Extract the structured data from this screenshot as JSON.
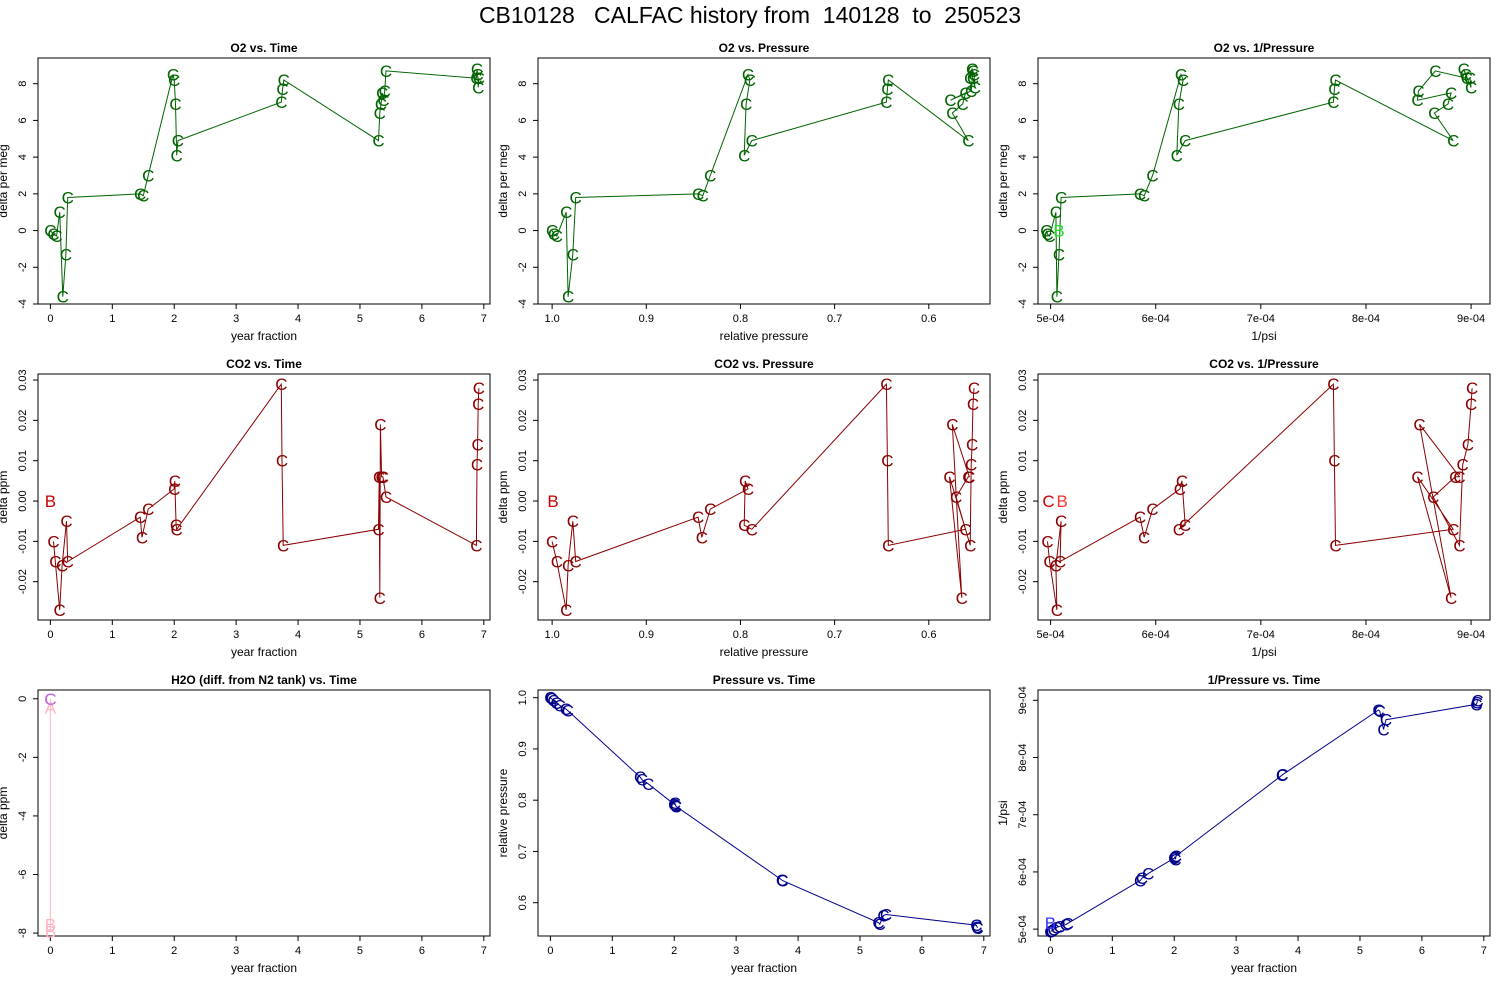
{
  "title": "CB10128   CALFAC history from  140128  to  250523",
  "colors": {
    "o2": "#006400",
    "co2": "#8b0000",
    "h2o": "#ffb6c1",
    "pressure": "#00008b"
  },
  "chart_data": [
    {
      "type": "line",
      "title": "O2 vs. Time",
      "xlabel": "year fraction",
      "ylabel": "delta per meg",
      "xlim": [
        -0.2,
        7.1
      ],
      "ylim": [
        -4,
        9.4
      ],
      "xticks": [
        [
          0,
          "0"
        ],
        [
          1,
          "1"
        ],
        [
          2,
          "2"
        ],
        [
          3,
          "3"
        ],
        [
          4,
          "4"
        ],
        [
          5,
          "5"
        ],
        [
          6,
          "6"
        ],
        [
          7,
          "7"
        ]
      ],
      "yticks": [
        [
          -4,
          "-4"
        ],
        [
          -2,
          "-2"
        ],
        [
          0,
          "0"
        ],
        [
          2,
          "2"
        ],
        [
          4,
          "4"
        ],
        [
          6,
          "6"
        ],
        [
          8,
          "8"
        ]
      ],
      "color": "#006400",
      "symbol": "C",
      "x": [
        0,
        0.05,
        0.1,
        0.15,
        0.2,
        0.25,
        0.28,
        1.45,
        1.5,
        1.58,
        1.98,
        2.0,
        2.02,
        2.04,
        2.06,
        3.73,
        3.75,
        3.77,
        5.3,
        5.32,
        5.34,
        5.36,
        5.38,
        5.4,
        5.42,
        6.88,
        6.89,
        6.9,
        6.91,
        6.92
      ],
      "y": [
        0,
        -0.2,
        -0.3,
        1.0,
        -3.6,
        -1.3,
        1.8,
        2.0,
        1.9,
        3.0,
        8.5,
        8.2,
        6.9,
        4.1,
        4.9,
        7.0,
        7.7,
        8.2,
        4.9,
        6.4,
        6.9,
        7.5,
        7.1,
        7.6,
        8.7,
        8.3,
        8.8,
        8.5,
        7.8,
        8.3
      ]
    },
    {
      "type": "line",
      "title": "O2 vs. Pressure",
      "xlabel": "relative pressure",
      "ylabel": "delta per meg",
      "xlim": [
        1.015,
        0.535
      ],
      "ylim": [
        -4,
        9.4
      ],
      "xticks": [
        [
          1.0,
          "1.0"
        ],
        [
          0.9,
          "0.9"
        ],
        [
          0.8,
          "0.8"
        ],
        [
          0.7,
          "0.7"
        ],
        [
          0.6,
          "0.6"
        ]
      ],
      "yticks": [
        [
          -4,
          "-4"
        ],
        [
          -2,
          "-2"
        ],
        [
          0,
          "0"
        ],
        [
          2,
          "2"
        ],
        [
          4,
          "4"
        ],
        [
          6,
          "6"
        ],
        [
          8,
          "8"
        ]
      ],
      "color": "#006400",
      "symbol": "C",
      "x": [
        1.0,
        0.998,
        0.995,
        0.985,
        0.983,
        0.978,
        0.975,
        0.845,
        0.84,
        0.832,
        0.792,
        0.79,
        0.794,
        0.796,
        0.788,
        0.645,
        0.644,
        0.643,
        0.558,
        0.575,
        0.564,
        0.561,
        0.577,
        0.555,
        0.553,
        0.556,
        0.554,
        0.552,
        0.551,
        0.553
      ],
      "y": [
        0,
        -0.2,
        -0.3,
        1.0,
        -3.6,
        -1.3,
        1.8,
        2.0,
        1.9,
        3.0,
        8.5,
        8.2,
        6.9,
        4.1,
        4.9,
        7.0,
        7.7,
        8.2,
        4.9,
        6.4,
        6.9,
        7.5,
        7.1,
        7.6,
        8.7,
        8.3,
        8.8,
        8.5,
        7.8,
        8.3
      ]
    },
    {
      "type": "line",
      "title": "O2 vs. 1/Pressure",
      "xlabel": "1/psi",
      "ylabel": "delta per meg",
      "xlim": [
        0.000488,
        0.000918
      ],
      "ylim": [
        -4,
        9.4
      ],
      "xticks": [
        [
          0.0005,
          "5e-04"
        ],
        [
          0.0006,
          "6e-04"
        ],
        [
          0.0007,
          "7e-04"
        ],
        [
          0.0008,
          "8e-04"
        ],
        [
          0.0009,
          "9e-04"
        ]
      ],
      "yticks": [
        [
          -4,
          "-4"
        ],
        [
          -2,
          "-2"
        ],
        [
          0,
          "0"
        ],
        [
          2,
          "2"
        ],
        [
          4,
          "4"
        ],
        [
          6,
          "6"
        ],
        [
          8,
          "8"
        ]
      ],
      "color": "#006400",
      "symbol": "C",
      "x": [
        0.000496,
        0.000497,
        0.000499,
        0.000505,
        0.000506,
        0.000508,
        0.00051,
        0.000585,
        0.000589,
        0.000597,
        0.000624,
        0.000626,
        0.000622,
        0.00062,
        0.000628,
        0.000769,
        0.00077,
        0.000771,
        0.000883,
        0.000865,
        0.000878,
        0.000881,
        0.000849,
        0.00085,
        0.000866,
        0.000896,
        0.000893,
        0.000895,
        0.0009,
        0.000899
      ],
      "y": [
        0,
        -0.2,
        -0.3,
        1.0,
        -3.6,
        -1.3,
        1.8,
        2.0,
        1.9,
        3.0,
        8.5,
        8.2,
        6.9,
        4.1,
        4.9,
        7.0,
        7.7,
        8.2,
        4.9,
        6.4,
        6.9,
        7.5,
        7.1,
        7.6,
        8.7,
        8.3,
        8.8,
        8.5,
        7.8,
        8.3
      ],
      "extra_points": [
        {
          "symbol": "B",
          "x": 0.000508,
          "y": 0,
          "color": "#22dd22"
        }
      ]
    },
    {
      "type": "line",
      "title": "CO2 vs. Time",
      "xlabel": "year fraction",
      "ylabel": "delta ppm",
      "xlim": [
        -0.2,
        7.1
      ],
      "ylim": [
        -0.0295,
        0.0315
      ],
      "xticks": [
        [
          0,
          "0"
        ],
        [
          1,
          "1"
        ],
        [
          2,
          "2"
        ],
        [
          3,
          "3"
        ],
        [
          4,
          "4"
        ],
        [
          5,
          "5"
        ],
        [
          6,
          "6"
        ],
        [
          7,
          "7"
        ]
      ],
      "yticks": [
        [
          -0.02,
          "-0.02"
        ],
        [
          -0.01,
          "-0.01"
        ],
        [
          0,
          "0.00"
        ],
        [
          0.01,
          "0.01"
        ],
        [
          0.02,
          "0.02"
        ],
        [
          0.03,
          "0.03"
        ]
      ],
      "color": "#8b0000",
      "symbol": "C",
      "x": [
        0.05,
        0.08,
        0.15,
        0.19,
        0.26,
        0.28,
        1.45,
        1.48,
        1.58,
        2.0,
        2.01,
        2.03,
        2.04,
        3.73,
        3.74,
        3.76,
        5.3,
        5.31,
        5.32,
        5.33,
        5.35,
        5.37,
        5.42,
        6.88,
        6.89,
        6.9,
        6.91,
        6.92
      ],
      "y": [
        -0.01,
        -0.015,
        -0.027,
        -0.016,
        -0.005,
        -0.015,
        -0.004,
        -0.009,
        -0.002,
        0.003,
        0.005,
        -0.006,
        -0.007,
        0.029,
        0.01,
        -0.011,
        -0.007,
        0.006,
        -0.024,
        0.019,
        0.006,
        0.006,
        0.001,
        -0.011,
        0.009,
        0.014,
        0.024,
        0.028
      ],
      "extra_points": [
        {
          "symbol": "B",
          "x": 0.0,
          "y": 0.0,
          "color": "#cc0000"
        }
      ]
    },
    {
      "type": "line",
      "title": "CO2 vs. Pressure",
      "xlabel": "relative pressure",
      "ylabel": "delta ppm",
      "xlim": [
        1.015,
        0.535
      ],
      "ylim": [
        -0.0295,
        0.0315
      ],
      "xticks": [
        [
          1.0,
          "1.0"
        ],
        [
          0.9,
          "0.9"
        ],
        [
          0.8,
          "0.8"
        ],
        [
          0.7,
          "0.7"
        ],
        [
          0.6,
          "0.6"
        ]
      ],
      "yticks": [
        [
          -0.02,
          "-0.02"
        ],
        [
          -0.01,
          "-0.01"
        ],
        [
          0,
          "0.00"
        ],
        [
          0.01,
          "0.01"
        ],
        [
          0.02,
          "0.02"
        ],
        [
          0.03,
          "0.03"
        ]
      ],
      "color": "#8b0000",
      "symbol": "C",
      "x": [
        1.0,
        0.995,
        0.985,
        0.983,
        0.978,
        0.975,
        0.845,
        0.841,
        0.832,
        0.792,
        0.795,
        0.796,
        0.788,
        0.645,
        0.644,
        0.643,
        0.561,
        0.578,
        0.565,
        0.575,
        0.557,
        0.558,
        0.571,
        0.556,
        0.555,
        0.554,
        0.553,
        0.552
      ],
      "y": [
        -0.01,
        -0.015,
        -0.027,
        -0.016,
        -0.005,
        -0.015,
        -0.004,
        -0.009,
        -0.002,
        0.003,
        0.005,
        -0.006,
        -0.007,
        0.029,
        0.01,
        -0.011,
        -0.007,
        0.006,
        -0.024,
        0.019,
        0.006,
        0.006,
        0.001,
        -0.011,
        0.009,
        0.014,
        0.024,
        0.028
      ],
      "extra_points": [
        {
          "symbol": "B",
          "x": 0.999,
          "y": 0.0,
          "color": "#cc0000"
        }
      ]
    },
    {
      "type": "line",
      "title": "CO2 vs. 1/Pressure",
      "xlabel": "1/psi",
      "ylabel": "delta ppm",
      "xlim": [
        0.000488,
        0.000918
      ],
      "ylim": [
        -0.0295,
        0.0315
      ],
      "xticks": [
        [
          0.0005,
          "5e-04"
        ],
        [
          0.0006,
          "6e-04"
        ],
        [
          0.0007,
          "7e-04"
        ],
        [
          0.0008,
          "8e-04"
        ],
        [
          0.0009,
          "9e-04"
        ]
      ],
      "yticks": [
        [
          -0.02,
          "-0.02"
        ],
        [
          -0.01,
          "-0.01"
        ],
        [
          0,
          "0.00"
        ],
        [
          0.01,
          "0.01"
        ],
        [
          0.02,
          "0.02"
        ],
        [
          0.03,
          "0.03"
        ]
      ],
      "color": "#8b0000",
      "symbol": "C",
      "x": [
        0.000497,
        0.000499,
        0.000506,
        0.000505,
        0.00051,
        0.000509,
        0.000585,
        0.000589,
        0.000597,
        0.000623,
        0.000625,
        0.000628,
        0.000622,
        0.000769,
        0.00077,
        0.000771,
        0.000883,
        0.000849,
        0.000881,
        0.000851,
        0.000889,
        0.000885,
        0.000864,
        0.000889,
        0.000892,
        0.000897,
        0.0009,
        0.000901
      ],
      "y": [
        -0.01,
        -0.015,
        -0.027,
        -0.016,
        -0.005,
        -0.015,
        -0.004,
        -0.009,
        -0.002,
        0.003,
        0.005,
        -0.006,
        -0.007,
        0.029,
        0.01,
        -0.011,
        -0.007,
        0.006,
        -0.024,
        0.019,
        0.006,
        0.006,
        0.001,
        -0.011,
        0.009,
        0.014,
        0.024,
        0.028
      ],
      "extra_points": [
        {
          "symbol": "C",
          "x": 0.000498,
          "y": 0.0,
          "color": "#cc0000"
        },
        {
          "symbol": "B",
          "x": 0.000511,
          "y": 0.0,
          "color": "#ff3333"
        }
      ]
    },
    {
      "type": "line",
      "title": "H2O (diff. from N2 tank) vs. Time",
      "xlabel": "year fraction",
      "ylabel": "delta ppm",
      "xlim": [
        -0.2,
        7.1
      ],
      "ylim": [
        -8.1,
        0.3
      ],
      "xticks": [
        [
          0,
          "0"
        ],
        [
          1,
          "1"
        ],
        [
          2,
          "2"
        ],
        [
          3,
          "3"
        ],
        [
          4,
          "4"
        ],
        [
          5,
          "5"
        ],
        [
          6,
          "6"
        ],
        [
          7,
          "7"
        ]
      ],
      "yticks": [
        [
          -8,
          "-8"
        ],
        [
          -6,
          "-6"
        ],
        [
          -4,
          "-4"
        ],
        [
          -2,
          "-2"
        ],
        [
          0,
          "0"
        ]
      ],
      "color": "#ffb6c1",
      "symbol": "C",
      "x": [
        0.0,
        0.0,
        0.0,
        0.0,
        0.0
      ],
      "y": [
        0.0,
        0.0,
        -0.3,
        -7.7,
        -7.95
      ],
      "symbols": [
        "C",
        "C",
        "A",
        "B",
        "B"
      ],
      "extra_points": [
        {
          "symbol": "C",
          "x": 0.0,
          "y": 0.0,
          "color": "#bb66ee"
        }
      ]
    },
    {
      "type": "line",
      "title": "Pressure vs. Time",
      "xlabel": "year fraction",
      "ylabel": "relative pressure",
      "xlim": [
        -0.2,
        7.1
      ],
      "ylim": [
        0.535,
        1.015
      ],
      "xticks": [
        [
          0,
          "0"
        ],
        [
          1,
          "1"
        ],
        [
          2,
          "2"
        ],
        [
          3,
          "3"
        ],
        [
          4,
          "4"
        ],
        [
          5,
          "5"
        ],
        [
          6,
          "6"
        ],
        [
          7,
          "7"
        ]
      ],
      "yticks": [
        [
          0.6,
          "0.6"
        ],
        [
          0.7,
          "0.7"
        ],
        [
          0.8,
          "0.8"
        ],
        [
          0.9,
          "0.9"
        ],
        [
          1.0,
          "1.0"
        ]
      ],
      "color": "#00008b",
      "symbol": "C",
      "x": [
        0.0,
        0.02,
        0.05,
        0.1,
        0.15,
        0.25,
        0.28,
        1.45,
        1.48,
        1.58,
        2.0,
        2.01,
        2.02,
        2.03,
        3.74,
        3.75,
        5.3,
        5.32,
        5.38,
        5.42,
        6.88,
        6.89,
        6.9
      ],
      "y": [
        1.0,
        0.998,
        0.995,
        0.99,
        0.985,
        0.978,
        0.975,
        0.845,
        0.84,
        0.832,
        0.792,
        0.795,
        0.79,
        0.788,
        0.644,
        0.643,
        0.561,
        0.558,
        0.575,
        0.577,
        0.556,
        0.553,
        0.551
      ]
    },
    {
      "type": "line",
      "title": "1/Pressure vs. Time",
      "xlabel": "year fraction",
      "ylabel": "1/psi",
      "xlim": [
        -0.2,
        7.1
      ],
      "ylim": [
        0.000488,
        0.000918
      ],
      "xticks": [
        [
          0,
          "0"
        ],
        [
          1,
          "1"
        ],
        [
          2,
          "2"
        ],
        [
          3,
          "3"
        ],
        [
          4,
          "4"
        ],
        [
          5,
          "5"
        ],
        [
          6,
          "6"
        ],
        [
          7,
          "7"
        ]
      ],
      "yticks": [
        [
          0.0005,
          "5e-04"
        ],
        [
          0.0006,
          "6e-04"
        ],
        [
          0.0007,
          "7e-04"
        ],
        [
          0.0008,
          "8e-04"
        ],
        [
          0.0009,
          "9e-04"
        ]
      ],
      "color": "#00008b",
      "symbol": "C",
      "x": [
        0.0,
        0.02,
        0.05,
        0.1,
        0.15,
        0.25,
        0.28,
        1.45,
        1.48,
        1.58,
        2.0,
        2.01,
        2.02,
        2.03,
        3.74,
        3.75,
        5.3,
        5.32,
        5.38,
        5.42,
        6.88,
        6.89,
        6.9
      ],
      "y": [
        0.000496,
        0.000497,
        0.000499,
        0.000503,
        0.000505,
        0.000508,
        0.00051,
        0.000585,
        0.000589,
        0.000597,
        0.000624,
        0.000626,
        0.000622,
        0.000628,
        0.000769,
        0.00077,
        0.000883,
        0.000881,
        0.000849,
        0.000866,
        0.000893,
        0.000896,
        0.0009
      ],
      "extra_points": [
        {
          "symbol": "B",
          "x": 0.0,
          "y": 0.000511,
          "color": "#3333ff"
        }
      ]
    }
  ]
}
